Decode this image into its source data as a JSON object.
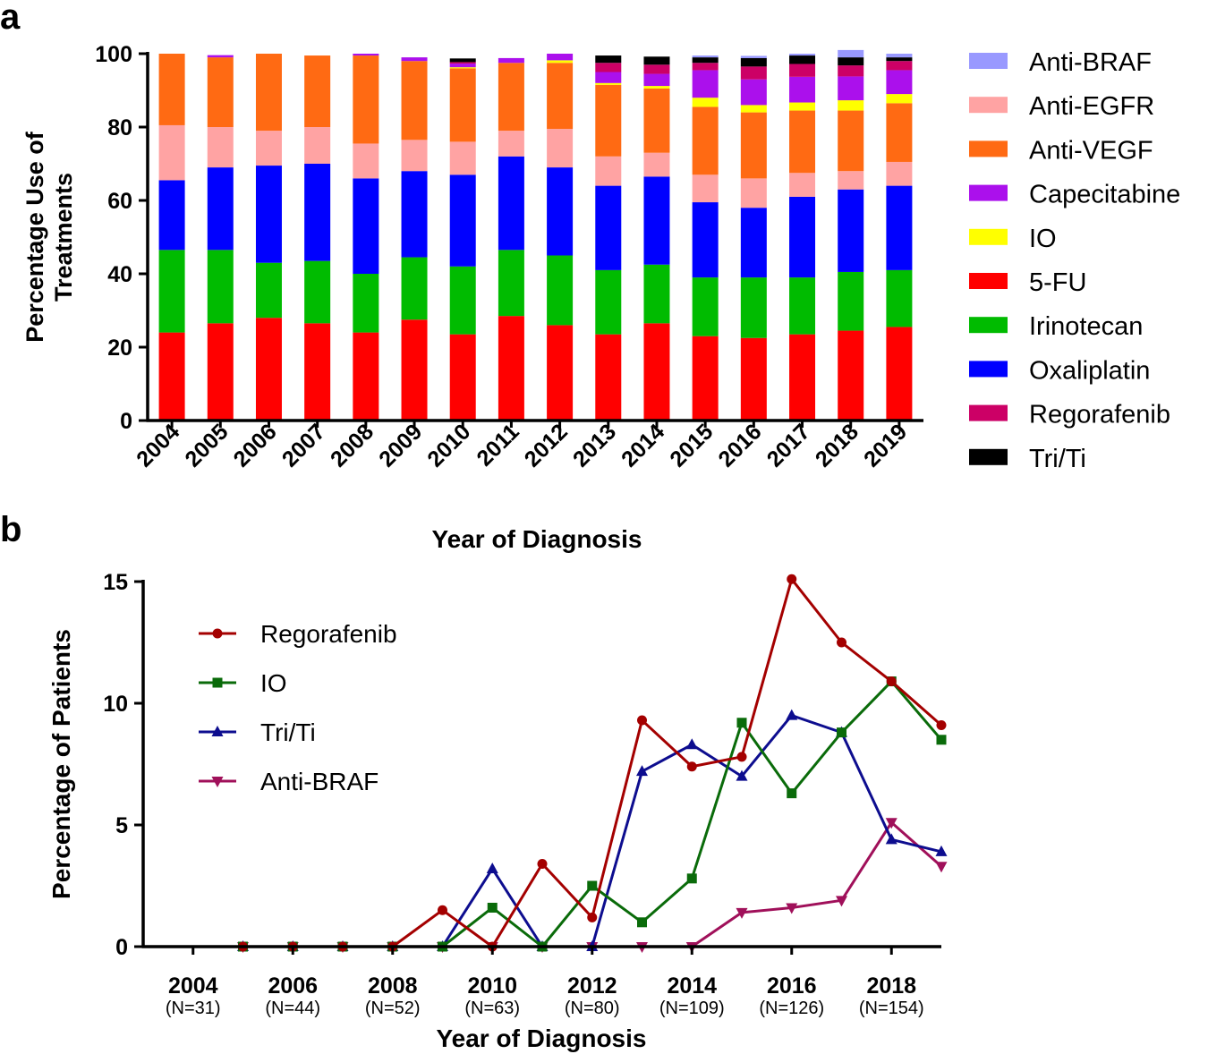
{
  "colors": {
    "Anti-BRAF": "#9999ff",
    "Anti-EGFR": "#ffa3a3",
    "Anti-VEGF": "#ff6a13",
    "Capecitabine": "#ab10ec",
    "IO": "#ffff00",
    "5-FU": "#ff0000",
    "Irinotecan": "#00bb00",
    "Oxaliplatin": "#0000ff",
    "Regorafenib": "#cc0066",
    "Tri/Ti": "#000000",
    "line_Regorafenib": "#a40000",
    "line_IO": "#0a6b0a",
    "line_Tri/Ti": "#0d0d8f",
    "line_Anti-BRAF": "#a0105a"
  },
  "chart_data": [
    {
      "panel_label": "a",
      "type": "bar",
      "stacked": true,
      "xlabel": "Year of Diagnosis",
      "ylabel_lines": [
        "Percentage Use of",
        "Treatments"
      ],
      "ylim": [
        0,
        100
      ],
      "yticks": [
        0,
        20,
        40,
        60,
        80,
        100
      ],
      "categories": [
        "2004",
        "2005",
        "2006",
        "2007",
        "2008",
        "2009",
        "2010",
        "2011",
        "2012",
        "2013",
        "2014",
        "2015",
        "2016",
        "2017",
        "2018",
        "2019"
      ],
      "legend_position": "right",
      "legend": [
        "Anti-BRAF",
        "Anti-EGFR",
        "Anti-VEGF",
        "Capecitabine",
        "IO",
        "5-FU",
        "Irinotecan",
        "Oxaliplatin",
        "Regorafenib",
        "Tri/Ti"
      ],
      "series": [
        {
          "name": "5-FU",
          "values": [
            24,
            26.5,
            28,
            26.5,
            24,
            27.5,
            23.5,
            28.5,
            26,
            23.5,
            26.5,
            23,
            22.5,
            23.5,
            24.5,
            25.5
          ]
        },
        {
          "name": "Irinotecan",
          "values": [
            22.5,
            20,
            15,
            17,
            16,
            17,
            18.5,
            18,
            19,
            17.5,
            16,
            16,
            16.5,
            15.5,
            16,
            15.5
          ]
        },
        {
          "name": "Oxaliplatin",
          "values": [
            19,
            22.5,
            26.5,
            26.5,
            26,
            23.5,
            25,
            25.5,
            24,
            23,
            24,
            20.5,
            19,
            22,
            22.5,
            23
          ]
        },
        {
          "name": "Anti-EGFR",
          "values": [
            15,
            11,
            9.5,
            10,
            9.5,
            8.5,
            9,
            7,
            10.5,
            8,
            6.5,
            7.5,
            8,
            6.5,
            5,
            6.5
          ]
        },
        {
          "name": "Anti-VEGF",
          "values": [
            19.5,
            19,
            21,
            19.5,
            24,
            21.5,
            20,
            18.5,
            18,
            19.5,
            17.5,
            18.5,
            18,
            17,
            16.5,
            16
          ]
        },
        {
          "name": "IO",
          "values": [
            0,
            0,
            0,
            0,
            0,
            0,
            0.3,
            0,
            0.7,
            0.5,
            0.7,
            2.5,
            2,
            2.2,
            2.8,
            2.5
          ]
        },
        {
          "name": "Capecitabine",
          "values": [
            0,
            0.6,
            0,
            0,
            0.5,
            1,
            1,
            1.3,
            1.8,
            3,
            3.3,
            7.5,
            7,
            7,
            6.5,
            6.5
          ]
        },
        {
          "name": "Regorafenib",
          "values": [
            0,
            0,
            0,
            0,
            0,
            0,
            0.4,
            0,
            0,
            2.5,
            2.5,
            2,
            3.5,
            3.5,
            3,
            2.5
          ]
        },
        {
          "name": "Tri/Ti",
          "values": [
            0,
            0,
            0,
            0,
            0,
            0,
            1,
            0,
            0,
            2,
            2.2,
            1.5,
            2.3,
            2.3,
            2.2,
            1
          ]
        },
        {
          "name": "Anti-BRAF",
          "values": [
            0,
            0,
            0,
            0,
            0,
            0,
            0,
            0,
            0,
            0,
            0,
            0.5,
            0.6,
            0.5,
            2,
            1
          ]
        }
      ]
    },
    {
      "panel_label": "b",
      "type": "line",
      "xlabel": "Year of Diagnosis",
      "ylabel": "Percentage of Patients",
      "ylim": [
        0,
        15
      ],
      "xlim": [
        2003,
        2019
      ],
      "yticks": [
        0,
        5,
        10,
        15
      ],
      "xticks": [
        {
          "year": 2004,
          "n": "(N=31)"
        },
        {
          "year": 2006,
          "n": "(N=44)"
        },
        {
          "year": 2008,
          "n": "(N=52)"
        },
        {
          "year": 2010,
          "n": "(N=63)"
        },
        {
          "year": 2012,
          "n": "(N=80)"
        },
        {
          "year": 2014,
          "n": "(N=109)"
        },
        {
          "year": 2016,
          "n": "(N=126)"
        },
        {
          "year": 2018,
          "n": "(N=154)"
        }
      ],
      "legend_position": "top-left",
      "x": [
        2005,
        2006,
        2007,
        2008,
        2009,
        2010,
        2011,
        2012,
        2013,
        2014,
        2015,
        2016,
        2017,
        2018,
        2019
      ],
      "series": [
        {
          "name": "Regorafenib",
          "marker": "circle",
          "values": [
            0,
            0,
            0,
            0,
            1.5,
            0,
            3.4,
            1.2,
            9.3,
            7.4,
            7.8,
            15.1,
            12.5,
            10.9,
            9.1
          ]
        },
        {
          "name": "IO",
          "marker": "square",
          "values": [
            0,
            0,
            0,
            0,
            0,
            1.6,
            0,
            2.5,
            1,
            2.8,
            9.2,
            6.3,
            8.8,
            10.9,
            8.5
          ]
        },
        {
          "name": "Tri/Ti",
          "marker": "triangle-up",
          "values": [
            0,
            0,
            0,
            0,
            0,
            3.2,
            0,
            0,
            7.2,
            8.3,
            7,
            9.5,
            8.8,
            4.4,
            3.9
          ]
        },
        {
          "name": "Anti-BRAF",
          "marker": "triangle-down",
          "values": [
            0,
            0,
            0,
            0,
            0,
            0,
            0,
            0,
            0,
            0,
            1.4,
            1.6,
            1.9,
            5.1,
            3.3
          ]
        }
      ]
    }
  ]
}
